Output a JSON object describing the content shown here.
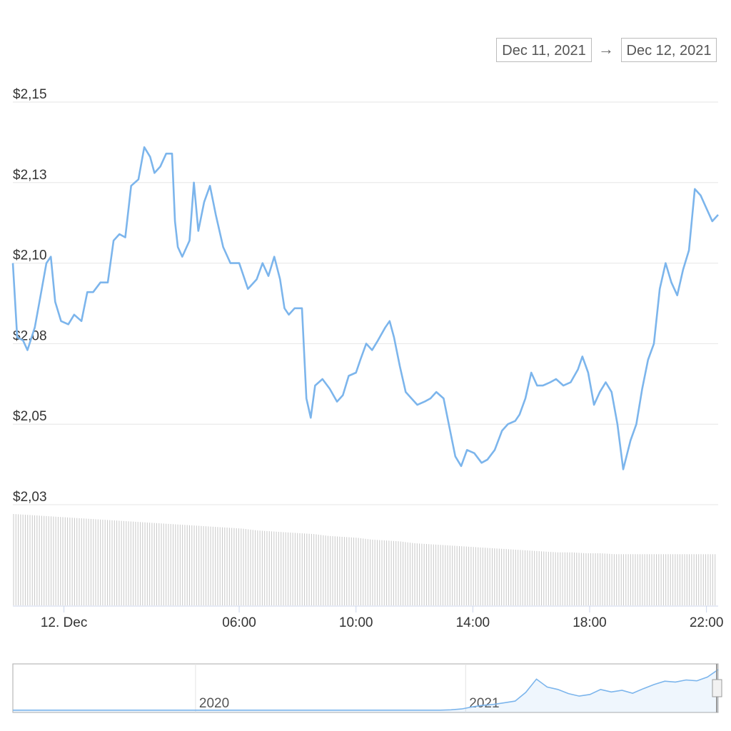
{
  "date_range": {
    "start": "Dec 11, 2021",
    "arrow": "→",
    "end": "Dec 12, 2021"
  },
  "colors": {
    "price_line": "#7cb5ec",
    "volume_bars": "#c8c8c8",
    "grid": "#e6e6e6",
    "navigator_outline": "#b8b8b8"
  },
  "chart_data": {
    "type": "line",
    "title": "",
    "xlabel": "",
    "ylabel": "",
    "ylim": [
      2.025,
      2.15
    ],
    "y_ticks": [
      {
        "value": 2.15,
        "label": "$2,15"
      },
      {
        "value": 2.125,
        "label": "$2,13"
      },
      {
        "value": 2.1,
        "label": "$2,10"
      },
      {
        "value": 2.075,
        "label": "$2,08"
      },
      {
        "value": 2.05,
        "label": "$2,05"
      },
      {
        "value": 2.025,
        "label": "$2,03"
      }
    ],
    "x_range_hours": [
      -1.75,
      22.4
    ],
    "x_ticks": [
      {
        "hour": 0,
        "label": "12. Dec"
      },
      {
        "hour": 6,
        "label": "06:00"
      },
      {
        "hour": 10,
        "label": "10:00"
      },
      {
        "hour": 14,
        "label": "14:00"
      },
      {
        "hour": 18,
        "label": "18:00"
      },
      {
        "hour": 22,
        "label": "22:00"
      }
    ],
    "grid": true,
    "series": [
      {
        "points": [
          [
            -1.75,
            2.1
          ],
          [
            -1.6,
            2.077
          ],
          [
            -1.4,
            2.076
          ],
          [
            -1.25,
            2.073
          ],
          [
            -1.0,
            2.08
          ],
          [
            -0.8,
            2.09
          ],
          [
            -0.6,
            2.1
          ],
          [
            -0.45,
            2.102
          ],
          [
            -0.3,
            2.088
          ],
          [
            -0.1,
            2.082
          ],
          [
            0.15,
            2.081
          ],
          [
            0.35,
            2.084
          ],
          [
            0.6,
            2.082
          ],
          [
            0.8,
            2.091
          ],
          [
            1.0,
            2.091
          ],
          [
            1.25,
            2.094
          ],
          [
            1.5,
            2.094
          ],
          [
            1.7,
            2.107
          ],
          [
            1.9,
            2.109
          ],
          [
            2.1,
            2.108
          ],
          [
            2.3,
            2.124
          ],
          [
            2.55,
            2.126
          ],
          [
            2.75,
            2.136
          ],
          [
            2.95,
            2.133
          ],
          [
            3.1,
            2.128
          ],
          [
            3.3,
            2.13
          ],
          [
            3.5,
            2.134
          ],
          [
            3.7,
            2.134
          ],
          [
            3.8,
            2.113
          ],
          [
            3.9,
            2.105
          ],
          [
            4.05,
            2.102
          ],
          [
            4.3,
            2.107
          ],
          [
            4.45,
            2.125
          ],
          [
            4.6,
            2.11
          ],
          [
            4.8,
            2.119
          ],
          [
            5.0,
            2.124
          ],
          [
            5.2,
            2.115
          ],
          [
            5.45,
            2.105
          ],
          [
            5.7,
            2.1
          ],
          [
            6.0,
            2.1
          ],
          [
            6.3,
            2.092
          ],
          [
            6.6,
            2.095
          ],
          [
            6.8,
            2.1
          ],
          [
            7.0,
            2.096
          ],
          [
            7.2,
            2.102
          ],
          [
            7.4,
            2.095
          ],
          [
            7.55,
            2.086
          ],
          [
            7.7,
            2.084
          ],
          [
            7.9,
            2.086
          ],
          [
            8.15,
            2.086
          ],
          [
            8.3,
            2.058
          ],
          [
            8.45,
            2.052
          ],
          [
            8.6,
            2.062
          ],
          [
            8.85,
            2.064
          ],
          [
            9.1,
            2.061
          ],
          [
            9.35,
            2.057
          ],
          [
            9.55,
            2.059
          ],
          [
            9.75,
            2.065
          ],
          [
            10.0,
            2.066
          ],
          [
            10.15,
            2.07
          ],
          [
            10.35,
            2.075
          ],
          [
            10.55,
            2.073
          ],
          [
            10.75,
            2.076
          ],
          [
            11.0,
            2.08
          ],
          [
            11.15,
            2.082
          ],
          [
            11.3,
            2.077
          ],
          [
            11.5,
            2.068
          ],
          [
            11.7,
            2.06
          ],
          [
            11.9,
            2.058
          ],
          [
            12.1,
            2.056
          ],
          [
            12.35,
            2.057
          ],
          [
            12.55,
            2.058
          ],
          [
            12.75,
            2.06
          ],
          [
            13.0,
            2.058
          ],
          [
            13.2,
            2.049
          ],
          [
            13.4,
            2.04
          ],
          [
            13.6,
            2.037
          ],
          [
            13.8,
            2.042
          ],
          [
            14.05,
            2.041
          ],
          [
            14.3,
            2.038
          ],
          [
            14.5,
            2.039
          ],
          [
            14.75,
            2.042
          ],
          [
            15.0,
            2.048
          ],
          [
            15.2,
            2.05
          ],
          [
            15.45,
            2.051
          ],
          [
            15.6,
            2.053
          ],
          [
            15.8,
            2.058
          ],
          [
            16.0,
            2.066
          ],
          [
            16.2,
            2.062
          ],
          [
            16.4,
            2.062
          ],
          [
            16.65,
            2.063
          ],
          [
            16.85,
            2.064
          ],
          [
            17.1,
            2.062
          ],
          [
            17.35,
            2.063
          ],
          [
            17.6,
            2.067
          ],
          [
            17.75,
            2.071
          ],
          [
            17.95,
            2.066
          ],
          [
            18.15,
            2.056
          ],
          [
            18.35,
            2.06
          ],
          [
            18.55,
            2.063
          ],
          [
            18.75,
            2.06
          ],
          [
            18.95,
            2.05
          ],
          [
            19.15,
            2.036
          ],
          [
            19.4,
            2.045
          ],
          [
            19.6,
            2.05
          ],
          [
            19.8,
            2.061
          ],
          [
            20.0,
            2.07
          ],
          [
            20.2,
            2.075
          ],
          [
            20.4,
            2.092
          ],
          [
            20.6,
            2.1
          ],
          [
            20.8,
            2.094
          ],
          [
            21.0,
            2.09
          ],
          [
            21.2,
            2.098
          ],
          [
            21.4,
            2.104
          ],
          [
            21.6,
            2.123
          ],
          [
            21.8,
            2.121
          ],
          [
            22.0,
            2.117
          ],
          [
            22.2,
            2.113
          ],
          [
            22.4,
            2.115
          ]
        ]
      }
    ],
    "volume_relative": [
      1.0,
      0.99,
      0.98,
      0.97,
      0.96,
      0.95,
      0.94,
      0.93,
      0.92,
      0.91,
      0.9,
      0.89,
      0.88,
      0.87,
      0.86,
      0.85,
      0.84,
      0.82,
      0.81,
      0.8,
      0.79,
      0.78,
      0.76,
      0.75,
      0.74,
      0.72,
      0.71,
      0.7,
      0.68,
      0.67,
      0.66,
      0.65,
      0.64,
      0.63,
      0.62,
      0.61,
      0.6,
      0.59,
      0.58,
      0.58,
      0.57,
      0.57,
      0.56,
      0.56,
      0.56,
      0.56,
      0.56,
      0.56,
      0.56,
      0.56
    ]
  },
  "navigator": {
    "year_labels": [
      {
        "label": "2020",
        "pos": 0.259
      },
      {
        "label": "2021",
        "pos": 0.642
      }
    ],
    "series": [
      0.02,
      0.02,
      0.02,
      0.02,
      0.02,
      0.02,
      0.02,
      0.02,
      0.02,
      0.02,
      0.02,
      0.02,
      0.02,
      0.02,
      0.02,
      0.02,
      0.02,
      0.02,
      0.02,
      0.02,
      0.02,
      0.02,
      0.02,
      0.02,
      0.02,
      0.02,
      0.02,
      0.02,
      0.02,
      0.02,
      0.02,
      0.02,
      0.02,
      0.02,
      0.02,
      0.02,
      0.02,
      0.02,
      0.02,
      0.02,
      0.02,
      0.03,
      0.05,
      0.1,
      0.14,
      0.16,
      0.2,
      0.24,
      0.45,
      0.77,
      0.58,
      0.52,
      0.42,
      0.36,
      0.4,
      0.52,
      0.46,
      0.5,
      0.43,
      0.54,
      0.64,
      0.72,
      0.7,
      0.75,
      0.73,
      0.82,
      1.0
    ]
  }
}
